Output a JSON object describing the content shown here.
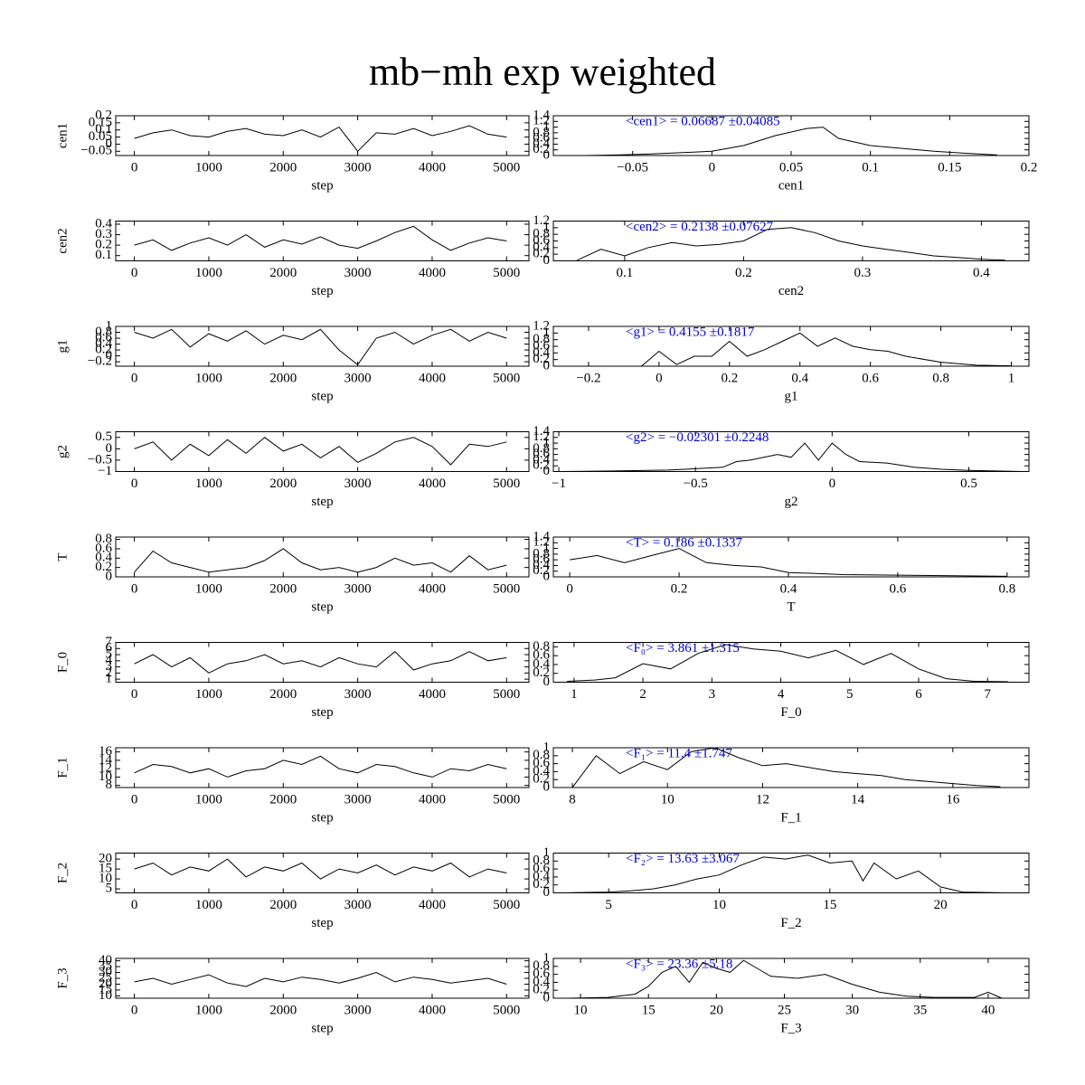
{
  "title": "mb−mh exp weighted",
  "chart_data": [
    {
      "type": "line",
      "xlabel": "step",
      "ylabel": "cen1",
      "color": "#000000",
      "x": [
        0,
        250,
        500,
        750,
        1000,
        1250,
        1500,
        1750,
        2000,
        2250,
        2500,
        2750,
        3000,
        3250,
        3500,
        3750,
        4000,
        4250,
        4500,
        4750,
        5000
      ],
      "values": [
        0.04,
        0.08,
        0.1,
        0.06,
        0.05,
        0.09,
        0.11,
        0.07,
        0.06,
        0.1,
        0.05,
        0.12,
        -0.05,
        0.08,
        0.07,
        0.11,
        0.06,
        0.09,
        0.13,
        0.07,
        0.05
      ],
      "xlim": [
        -250,
        5300
      ],
      "xticks": [
        0,
        1000,
        2000,
        3000,
        4000,
        5000
      ],
      "ylim": [
        -0.08,
        0.2
      ],
      "yticks": [
        {
          "value": -0.05,
          "label": "−0.05"
        },
        0,
        0.05,
        0.1,
        0.15,
        0.2
      ]
    },
    {
      "type": "line",
      "xlabel": "cen1",
      "annotation": "<cen1> = 0.06687 ±0.04085",
      "annotation_color": "#0000cc",
      "color": "#000000",
      "x": [
        -0.08,
        -0.06,
        -0.04,
        -0.02,
        0,
        0.02,
        0.04,
        0.06,
        0.07,
        0.08,
        0.1,
        0.12,
        0.14,
        0.16,
        0.18
      ],
      "values": [
        0,
        0.02,
        0.05,
        0.1,
        0.15,
        0.35,
        0.7,
        0.95,
        1,
        0.6,
        0.35,
        0.25,
        0.15,
        0.08,
        0.02
      ],
      "xlim": [
        -0.1,
        0.2
      ],
      "xticks": [
        {
          "value": -0.05,
          "label": "−0.05"
        },
        0,
        0.05,
        0.1,
        0.15,
        0.2
      ],
      "ylim": [
        0,
        1.4
      ],
      "yticks": [
        0,
        0.2,
        0.4,
        0.6,
        0.8,
        1,
        1.2,
        1.4
      ]
    },
    {
      "type": "line",
      "xlabel": "step",
      "ylabel": "cen2",
      "color": "#000000",
      "x": [
        0,
        250,
        500,
        750,
        1000,
        1250,
        1500,
        1750,
        2000,
        2250,
        2500,
        2750,
        3000,
        3250,
        3500,
        3750,
        4000,
        4250,
        4500,
        4750,
        5000
      ],
      "values": [
        0.2,
        0.25,
        0.15,
        0.22,
        0.27,
        0.2,
        0.3,
        0.18,
        0.25,
        0.21,
        0.28,
        0.2,
        0.17,
        0.24,
        0.32,
        0.38,
        0.25,
        0.15,
        0.22,
        0.27,
        0.24
      ],
      "xlim": [
        -250,
        5300
      ],
      "xticks": [
        0,
        1000,
        2000,
        3000,
        4000,
        5000
      ],
      "ylim": [
        0.05,
        0.43
      ],
      "yticks": [
        0.1,
        0.2,
        0.3,
        0.4
      ]
    },
    {
      "type": "line",
      "xlabel": "cen2",
      "annotation": "<cen2> = 0.2138 ±0.07627",
      "annotation_color": "#0000cc",
      "color": "#000000",
      "x": [
        0.06,
        0.08,
        0.1,
        0.12,
        0.14,
        0.16,
        0.18,
        0.2,
        0.22,
        0.24,
        0.26,
        0.28,
        0.3,
        0.32,
        0.34,
        0.36,
        0.38,
        0.4,
        0.42
      ],
      "values": [
        0.02,
        0.35,
        0.15,
        0.4,
        0.55,
        0.45,
        0.5,
        0.6,
        0.95,
        1,
        0.85,
        0.6,
        0.45,
        0.35,
        0.25,
        0.15,
        0.1,
        0.05,
        0.02
      ],
      "xlim": [
        0.04,
        0.44
      ],
      "xticks": [
        0.1,
        0.2,
        0.3,
        0.4
      ],
      "ylim": [
        0,
        1.2
      ],
      "yticks": [
        0,
        0.2,
        0.4,
        0.6,
        0.8,
        1,
        1.2
      ]
    },
    {
      "type": "line",
      "xlabel": "step",
      "ylabel": "g1",
      "color": "#000000",
      "x": [
        0,
        250,
        500,
        750,
        1000,
        1250,
        1500,
        1750,
        2000,
        2250,
        2500,
        2750,
        3000,
        3250,
        3500,
        3750,
        4000,
        4250,
        4500,
        4750,
        5000
      ],
      "values": [
        0.8,
        0.6,
        0.9,
        0.3,
        0.75,
        0.5,
        0.85,
        0.4,
        0.7,
        0.55,
        0.9,
        0.2,
        -0.3,
        0.6,
        0.8,
        0.4,
        0.7,
        0.9,
        0.5,
        0.8,
        0.6
      ],
      "xlim": [
        -250,
        5300
      ],
      "xticks": [
        0,
        1000,
        2000,
        3000,
        4000,
        5000
      ],
      "ylim": [
        -0.35,
        1
      ],
      "yticks": [
        {
          "value": -0.2,
          "label": "−0.2"
        },
        0,
        0.2,
        0.4,
        0.6,
        0.8,
        1
      ]
    },
    {
      "type": "line",
      "xlabel": "g1",
      "annotation": "<g1> = 0.4155 ±0.1817",
      "annotation_color": "#0000cc",
      "color": "#000000",
      "x": [
        -0.25,
        -0.15,
        -0.05,
        0,
        0.05,
        0.1,
        0.15,
        0.2,
        0.25,
        0.3,
        0.35,
        0.4,
        0.45,
        0.5,
        0.55,
        0.6,
        0.65,
        0.7,
        0.8,
        0.9,
        1
      ],
      "values": [
        0,
        0,
        0,
        0.45,
        0.05,
        0.3,
        0.3,
        0.75,
        0.3,
        0.5,
        0.75,
        1,
        0.6,
        0.85,
        0.6,
        0.5,
        0.45,
        0.3,
        0.12,
        0.03,
        0.01
      ],
      "xlim": [
        -0.3,
        1.05
      ],
      "xticks": [
        {
          "value": -0.2,
          "label": "−0.2"
        },
        0,
        0.2,
        0.4,
        0.6,
        0.8,
        1
      ],
      "ylim": [
        0,
        1.2
      ],
      "yticks": [
        0,
        0.2,
        0.4,
        0.6,
        0.8,
        1,
        1.2
      ]
    },
    {
      "type": "line",
      "xlabel": "step",
      "ylabel": "g2",
      "color": "#000000",
      "x": [
        0,
        250,
        500,
        750,
        1000,
        1250,
        1500,
        1750,
        2000,
        2250,
        2500,
        2750,
        3000,
        3250,
        3500,
        3750,
        4000,
        4250,
        4500,
        4750,
        5000
      ],
      "values": [
        0,
        0.3,
        -0.5,
        0.2,
        -0.3,
        0.4,
        -0.2,
        0.5,
        -0.1,
        0.2,
        -0.4,
        0.1,
        -0.6,
        -0.2,
        0.3,
        0.5,
        0.1,
        -0.7,
        0.2,
        0.1,
        0.3
      ],
      "xlim": [
        -250,
        5300
      ],
      "xticks": [
        0,
        1000,
        2000,
        3000,
        4000,
        5000
      ],
      "ylim": [
        -1,
        0.75
      ],
      "yticks": [
        {
          "value": -1,
          "label": "−1"
        },
        {
          "value": -0.5,
          "label": "−0.5"
        },
        0,
        0.5
      ]
    },
    {
      "type": "line",
      "xlabel": "g2",
      "annotation": "<g2> = −0.02301 ±0.2248",
      "annotation_color": "#0000cc",
      "color": "#000000",
      "x": [
        -1,
        -0.8,
        -0.6,
        -0.5,
        -0.4,
        -0.35,
        -0.3,
        -0.2,
        -0.15,
        -0.1,
        -0.05,
        0,
        0.05,
        0.1,
        0.2,
        0.3,
        0.4,
        0.5,
        0.6,
        0.7
      ],
      "values": [
        0,
        0.02,
        0.05,
        0.1,
        0.15,
        0.35,
        0.4,
        0.6,
        0.5,
        1,
        0.4,
        1,
        0.6,
        0.35,
        0.3,
        0.15,
        0.08,
        0.04,
        0.02,
        0
      ],
      "xlim": [
        -1.02,
        0.72
      ],
      "xticks": [
        {
          "value": -1,
          "label": "−1"
        },
        {
          "value": -0.5,
          "label": "−0.5"
        },
        0,
        0.5
      ],
      "ylim": [
        0,
        1.4
      ],
      "yticks": [
        0,
        0.2,
        0.4,
        0.6,
        0.8,
        1,
        1.2,
        1.4
      ]
    },
    {
      "type": "line",
      "xlabel": "step",
      "ylabel": "T",
      "color": "#000000",
      "x": [
        0,
        250,
        500,
        750,
        1000,
        1250,
        1500,
        1750,
        2000,
        2250,
        2500,
        2750,
        3000,
        3250,
        3500,
        3750,
        4000,
        4250,
        4500,
        4750,
        5000
      ],
      "values": [
        0.1,
        0.55,
        0.3,
        0.2,
        0.1,
        0.15,
        0.2,
        0.35,
        0.6,
        0.3,
        0.15,
        0.2,
        0.1,
        0.2,
        0.4,
        0.25,
        0.3,
        0.1,
        0.45,
        0.15,
        0.25
      ],
      "xlim": [
        -250,
        5300
      ],
      "xticks": [
        0,
        1000,
        2000,
        3000,
        4000,
        5000
      ],
      "ylim": [
        0,
        0.85
      ],
      "yticks": [
        0,
        0.2,
        0.4,
        0.6,
        0.8
      ]
    },
    {
      "type": "line",
      "xlabel": "T",
      "annotation": "<T> = 0.186 ±0.1337",
      "annotation_color": "#0000cc",
      "color": "#000000",
      "x": [
        0,
        0.05,
        0.1,
        0.15,
        0.2,
        0.25,
        0.3,
        0.35,
        0.4,
        0.45,
        0.5,
        0.6,
        0.7,
        0.8
      ],
      "values": [
        0.6,
        0.75,
        0.5,
        0.75,
        1,
        0.5,
        0.4,
        0.35,
        0.15,
        0.12,
        0.08,
        0.06,
        0.04,
        0.02
      ],
      "xlim": [
        -0.03,
        0.84
      ],
      "xticks": [
        0,
        0.2,
        0.4,
        0.6,
        0.8
      ],
      "ylim": [
        0,
        1.4
      ],
      "yticks": [
        0,
        0.2,
        0.4,
        0.6,
        0.8,
        1,
        1.2,
        1.4
      ]
    },
    {
      "type": "line",
      "xlabel": "step",
      "ylabel": "F_0",
      "color": "#000000",
      "x": [
        0,
        250,
        500,
        750,
        1000,
        1250,
        1500,
        1750,
        2000,
        2250,
        2500,
        2750,
        3000,
        3250,
        3500,
        3750,
        4000,
        4250,
        4500,
        4750,
        5000
      ],
      "values": [
        3.5,
        5,
        3,
        4.5,
        2,
        3.5,
        4,
        5,
        3.5,
        4,
        3,
        4.5,
        3.5,
        3,
        5.5,
        2.5,
        3.5,
        4,
        5.5,
        4,
        4.5
      ],
      "xlim": [
        -250,
        5300
      ],
      "xticks": [
        0,
        1000,
        2000,
        3000,
        4000,
        5000
      ],
      "ylim": [
        0.5,
        7
      ],
      "yticks": [
        1,
        2,
        3,
        4,
        5,
        6,
        7
      ]
    },
    {
      "type": "line",
      "xlabel": "F_0",
      "annotation": "<F₀> = 3.861 ±1.315",
      "annotation_color": "#0000cc",
      "color": "#000000",
      "x": [
        0.9,
        1.3,
        1.6,
        2,
        2.4,
        2.8,
        3.2,
        3.6,
        4,
        4.4,
        4.8,
        5.2,
        5.6,
        6,
        6.4,
        6.8,
        7.3
      ],
      "values": [
        0.02,
        0.05,
        0.1,
        0.42,
        0.3,
        0.65,
        0.85,
        0.75,
        0.7,
        0.55,
        0.72,
        0.4,
        0.65,
        0.3,
        0.08,
        0.02,
        0.01
      ],
      "xlim": [
        0.7,
        7.6
      ],
      "xticks": [
        1,
        2,
        3,
        4,
        5,
        6,
        7
      ],
      "ylim": [
        0,
        0.9
      ],
      "yticks": [
        0,
        0.2,
        0.4,
        0.6,
        0.8
      ]
    },
    {
      "type": "line",
      "xlabel": "step",
      "ylabel": "F_1",
      "color": "#000000",
      "x": [
        0,
        250,
        500,
        750,
        1000,
        1250,
        1500,
        1750,
        2000,
        2250,
        2500,
        2750,
        3000,
        3250,
        3500,
        3750,
        4000,
        4250,
        4500,
        4750,
        5000
      ],
      "values": [
        11,
        13,
        12.5,
        11,
        12,
        10,
        11.5,
        12,
        14,
        13,
        15,
        12,
        11,
        13,
        12.5,
        11,
        10,
        12,
        11.5,
        13,
        12
      ],
      "xlim": [
        -250,
        5300
      ],
      "xticks": [
        0,
        1000,
        2000,
        3000,
        4000,
        5000
      ],
      "ylim": [
        7.5,
        17
      ],
      "yticks": [
        8,
        10,
        12,
        14,
        16
      ]
    },
    {
      "type": "line",
      "xlabel": "F_1",
      "annotation": "<F₁> = 11.4 ±1.747",
      "annotation_color": "#0000cc",
      "color": "#000000",
      "x": [
        8,
        8.5,
        9,
        9.5,
        10,
        10.5,
        11,
        11.5,
        12,
        12.5,
        13,
        13.5,
        14,
        14.5,
        15,
        15.5,
        16,
        16.5,
        17
      ],
      "values": [
        0,
        0.8,
        0.35,
        0.65,
        0.45,
        0.9,
        1,
        0.75,
        0.55,
        0.6,
        0.5,
        0.4,
        0.35,
        0.3,
        0.2,
        0.15,
        0.1,
        0.05,
        0.02
      ],
      "xlim": [
        7.6,
        17.6
      ],
      "xticks": [
        8,
        10,
        12,
        14,
        16
      ],
      "ylim": [
        0,
        1
      ],
      "yticks": [
        0,
        0.2,
        0.4,
        0.6,
        0.8,
        1
      ]
    },
    {
      "type": "line",
      "xlabel": "step",
      "ylabel": "F_2",
      "color": "#000000",
      "x": [
        0,
        250,
        500,
        750,
        1000,
        1250,
        1500,
        1750,
        2000,
        2250,
        2500,
        2750,
        3000,
        3250,
        3500,
        3750,
        4000,
        4250,
        4500,
        4750,
        5000
      ],
      "values": [
        15,
        18,
        12,
        16,
        14,
        20,
        11,
        16,
        14,
        18,
        10,
        15,
        13,
        17,
        12,
        16,
        14,
        18,
        11,
        15,
        13
      ],
      "xlim": [
        -250,
        5300
      ],
      "xticks": [
        0,
        1000,
        2000,
        3000,
        4000,
        5000
      ],
      "ylim": [
        3,
        23
      ],
      "yticks": [
        5,
        10,
        15,
        20
      ]
    },
    {
      "type": "line",
      "xlabel": "F_2",
      "annotation": "<F₂> = 13.63 ±3.067",
      "annotation_color": "#0000cc",
      "color": "#000000",
      "x": [
        3,
        5,
        6,
        7,
        8,
        9,
        10,
        11,
        12,
        13,
        14,
        15,
        16,
        16.5,
        17,
        18,
        19,
        20,
        21,
        23
      ],
      "values": [
        0,
        0.02,
        0.05,
        0.1,
        0.2,
        0.35,
        0.45,
        0.7,
        0.9,
        0.85,
        0.95,
        0.75,
        0.8,
        0.3,
        0.75,
        0.35,
        0.55,
        0.15,
        0.02,
        0
      ],
      "xlim": [
        2.5,
        24
      ],
      "xticks": [
        5,
        10,
        15,
        20
      ],
      "ylim": [
        0,
        1
      ],
      "yticks": [
        0,
        0.2,
        0.4,
        0.6,
        0.8,
        1
      ]
    },
    {
      "type": "line",
      "xlabel": "step",
      "ylabel": "F_3",
      "color": "#000000",
      "x": [
        0,
        250,
        500,
        750,
        1000,
        1250,
        1500,
        1750,
        2000,
        2250,
        2500,
        2750,
        3000,
        3250,
        3500,
        3750,
        4000,
        4250,
        4500,
        4750,
        5000
      ],
      "values": [
        22,
        25,
        20,
        24,
        28,
        21,
        18,
        25,
        22,
        26,
        24,
        21,
        25,
        30,
        22,
        26,
        24,
        21,
        23,
        25,
        20
      ],
      "xlim": [
        -250,
        5300
      ],
      "xticks": [
        0,
        1000,
        2000,
        3000,
        4000,
        5000
      ],
      "ylim": [
        8,
        42
      ],
      "yticks": [
        10,
        15,
        20,
        25,
        30,
        35,
        40
      ]
    },
    {
      "type": "line",
      "xlabel": "F_3",
      "annotation": "<F₃> = 23.36 ±5.18",
      "annotation_color": "#0000cc",
      "color": "#000000",
      "x": [
        9,
        12,
        14,
        15,
        16,
        17,
        18,
        19,
        20,
        21,
        22,
        23,
        24,
        26,
        28,
        30,
        32,
        34,
        36,
        39,
        40,
        41
      ],
      "values": [
        0,
        0.02,
        0.1,
        0.3,
        0.65,
        0.8,
        0.4,
        0.9,
        0.75,
        0.65,
        0.95,
        0.75,
        0.55,
        0.5,
        0.6,
        0.35,
        0.15,
        0.05,
        0.02,
        0.02,
        0.15,
        0
      ],
      "xlim": [
        8,
        43
      ],
      "xticks": [
        10,
        15,
        20,
        25,
        30,
        35,
        40
      ],
      "ylim": [
        0,
        1
      ],
      "yticks": [
        0,
        0.2,
        0.4,
        0.6,
        0.8,
        1
      ]
    }
  ]
}
